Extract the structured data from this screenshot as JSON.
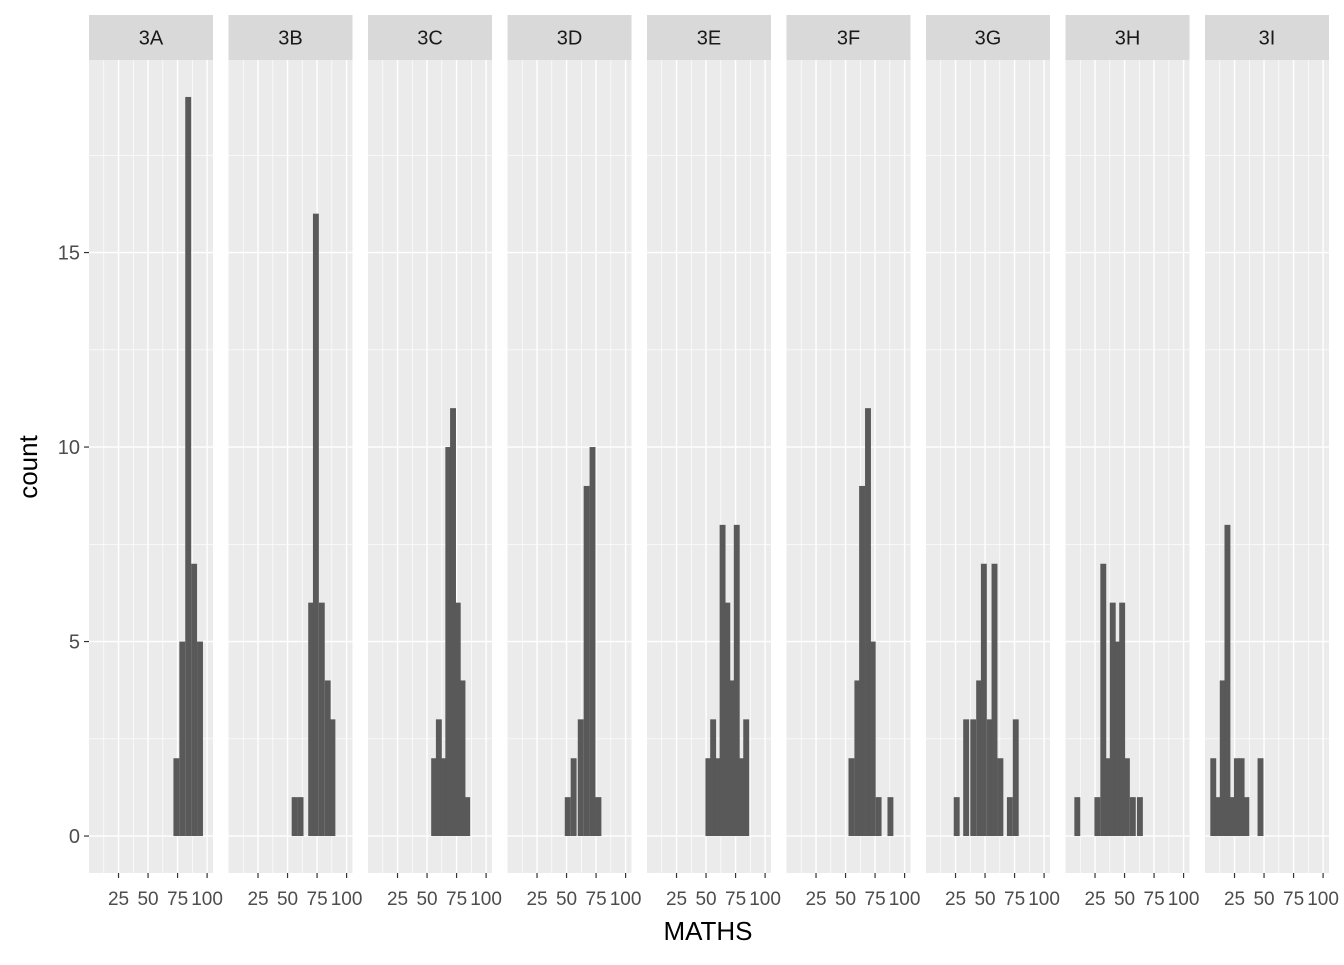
{
  "chart_data": {
    "type": "histogram",
    "facet_by": "class",
    "xlabel": "MATHS",
    "ylabel": "count",
    "x_ticks": [
      25,
      50,
      75,
      100
    ],
    "y_ticks": [
      0,
      5,
      10,
      15
    ],
    "xlim": [
      0,
      105
    ],
    "ylim": [
      -0.95,
      19.95
    ],
    "bin_width": 5,
    "colors": {
      "bar": "#595959",
      "panel_bg": "#ebebeb",
      "grid": "#ffffff",
      "strip_bg": "#d9d9d9",
      "text": "#4d4d4d",
      "title": "#000000"
    },
    "facets": [
      {
        "label": "3A",
        "bins": [
          {
            "x": 74,
            "count": 2
          },
          {
            "x": 79,
            "count": 5
          },
          {
            "x": 84,
            "count": 19
          },
          {
            "x": 89,
            "count": 7
          },
          {
            "x": 94,
            "count": 5
          }
        ]
      },
      {
        "label": "3B",
        "bins": [
          {
            "x": 56,
            "count": 1
          },
          {
            "x": 61,
            "count": 1
          },
          {
            "x": 70,
            "count": 6
          },
          {
            "x": 74,
            "count": 16
          },
          {
            "x": 79,
            "count": 6
          },
          {
            "x": 84,
            "count": 4
          },
          {
            "x": 88,
            "count": 3
          }
        ]
      },
      {
        "label": "3C",
        "bins": [
          {
            "x": 56,
            "count": 2
          },
          {
            "x": 60,
            "count": 3
          },
          {
            "x": 64,
            "count": 2
          },
          {
            "x": 68,
            "count": 10
          },
          {
            "x": 72,
            "count": 11
          },
          {
            "x": 76,
            "count": 6
          },
          {
            "x": 80,
            "count": 4
          },
          {
            "x": 84,
            "count": 1
          }
        ]
      },
      {
        "label": "3D",
        "bins": [
          {
            "x": 51,
            "count": 1
          },
          {
            "x": 56,
            "count": 2
          },
          {
            "x": 62,
            "count": 3
          },
          {
            "x": 67,
            "count": 9
          },
          {
            "x": 72,
            "count": 10
          },
          {
            "x": 77,
            "count": 1
          }
        ]
      },
      {
        "label": "3E",
        "bins": [
          {
            "x": 52,
            "count": 2
          },
          {
            "x": 56,
            "count": 3
          },
          {
            "x": 60,
            "count": 2
          },
          {
            "x": 64,
            "count": 8
          },
          {
            "x": 68,
            "count": 6
          },
          {
            "x": 72,
            "count": 4
          },
          {
            "x": 76,
            "count": 8
          },
          {
            "x": 80,
            "count": 2
          },
          {
            "x": 84,
            "count": 3
          }
        ]
      },
      {
        "label": "3F",
        "bins": [
          {
            "x": 55,
            "count": 2
          },
          {
            "x": 60,
            "count": 4
          },
          {
            "x": 64,
            "count": 9
          },
          {
            "x": 69,
            "count": 11
          },
          {
            "x": 73,
            "count": 5
          },
          {
            "x": 78,
            "count": 1
          },
          {
            "x": 88,
            "count": 1
          }
        ]
      },
      {
        "label": "3G",
        "bins": [
          {
            "x": 26,
            "count": 1
          },
          {
            "x": 34,
            "count": 3
          },
          {
            "x": 40,
            "count": 3
          },
          {
            "x": 45,
            "count": 4
          },
          {
            "x": 49,
            "count": 7
          },
          {
            "x": 54,
            "count": 3
          },
          {
            "x": 58,
            "count": 7
          },
          {
            "x": 63,
            "count": 2
          },
          {
            "x": 71,
            "count": 1
          },
          {
            "x": 76,
            "count": 3
          }
        ]
      },
      {
        "label": "3H",
        "bins": [
          {
            "x": 10,
            "count": 1
          },
          {
            "x": 27,
            "count": 1
          },
          {
            "x": 32,
            "count": 7
          },
          {
            "x": 36,
            "count": 2
          },
          {
            "x": 40,
            "count": 6
          },
          {
            "x": 44,
            "count": 5
          },
          {
            "x": 48,
            "count": 6
          },
          {
            "x": 52,
            "count": 2
          },
          {
            "x": 57,
            "count": 1
          },
          {
            "x": 63,
            "count": 1
          }
        ]
      },
      {
        "label": "3I",
        "bins": [
          {
            "x": 7,
            "count": 2
          },
          {
            "x": 11,
            "count": 1
          },
          {
            "x": 15,
            "count": 4
          },
          {
            "x": 19,
            "count": 8
          },
          {
            "x": 23,
            "count": 1
          },
          {
            "x": 27,
            "count": 2
          },
          {
            "x": 31,
            "count": 2
          },
          {
            "x": 35,
            "count": 1
          },
          {
            "x": 47,
            "count": 2
          }
        ]
      }
    ]
  }
}
